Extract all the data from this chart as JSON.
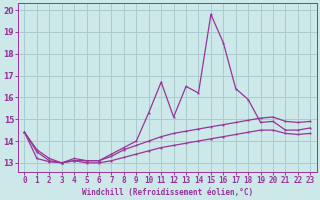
{
  "xlabel": "Windchill (Refroidissement éolien,°C)",
  "ylabel": "",
  "background_color": "#cce8e8",
  "grid_color": "#aacccc",
  "line_color": "#993399",
  "xlim": [
    -0.5,
    23.5
  ],
  "ylim": [
    12.6,
    20.3
  ],
  "x": [
    0,
    1,
    2,
    3,
    4,
    5,
    6,
    7,
    8,
    9,
    10,
    11,
    12,
    13,
    14,
    15,
    16,
    17,
    18,
    19,
    20,
    21,
    22,
    23
  ],
  "line1": [
    14.4,
    13.6,
    13.2,
    13.0,
    13.2,
    13.1,
    13.1,
    13.4,
    13.7,
    14.0,
    15.3,
    16.7,
    15.1,
    16.5,
    16.2,
    19.8,
    18.5,
    16.4,
    15.9,
    14.85,
    14.9,
    14.5,
    14.5,
    14.6
  ],
  "line2": [
    14.4,
    13.5,
    13.1,
    13.0,
    13.1,
    13.1,
    13.1,
    13.3,
    13.6,
    13.8,
    14.0,
    14.2,
    14.35,
    14.45,
    14.55,
    14.65,
    14.75,
    14.85,
    14.95,
    15.05,
    15.1,
    14.9,
    14.85,
    14.9
  ],
  "line3": [
    14.4,
    13.2,
    13.05,
    13.0,
    13.1,
    13.0,
    13.0,
    13.1,
    13.25,
    13.4,
    13.55,
    13.7,
    13.8,
    13.9,
    14.0,
    14.1,
    14.2,
    14.3,
    14.4,
    14.5,
    14.5,
    14.35,
    14.3,
    14.35
  ],
  "yticks": [
    13,
    14,
    15,
    16,
    17,
    18,
    19,
    20
  ],
  "xticks": [
    0,
    1,
    2,
    3,
    4,
    5,
    6,
    7,
    8,
    9,
    10,
    11,
    12,
    13,
    14,
    15,
    16,
    17,
    18,
    19,
    20,
    21,
    22,
    23
  ],
  "xlabel_fontsize": 5.5,
  "tick_fontsize": 5.5,
  "line_width": 0.9,
  "marker_size": 2.5
}
